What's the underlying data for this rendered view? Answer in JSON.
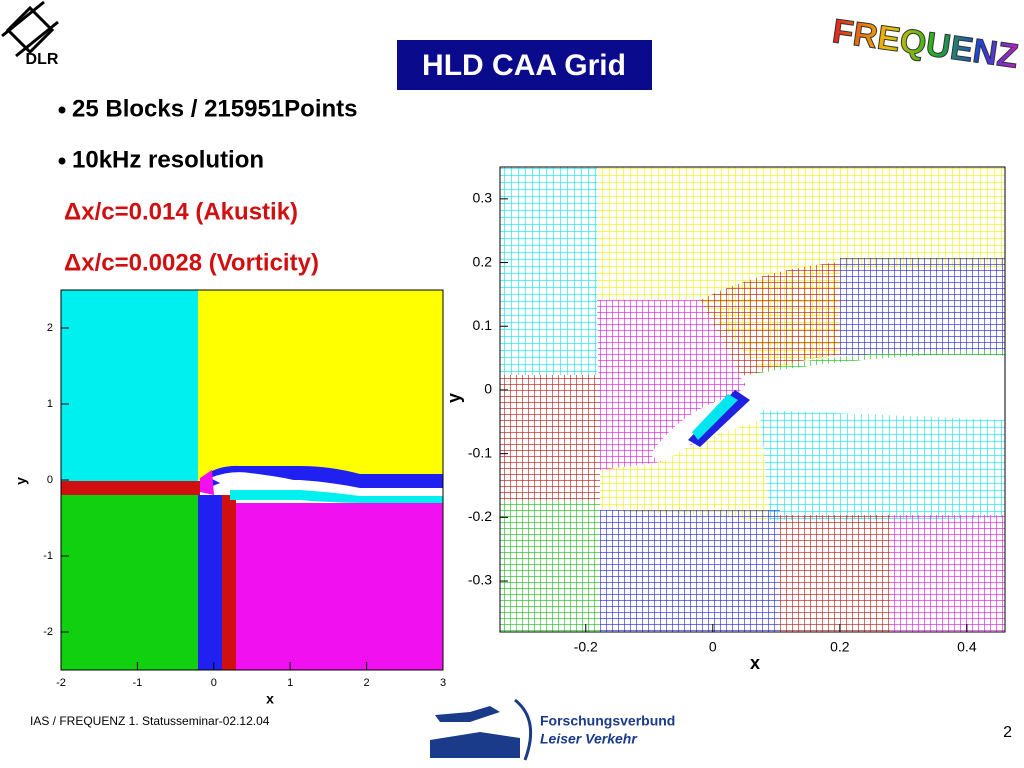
{
  "header": {
    "logo": "DLR",
    "title": "HLD CAA Grid",
    "badge": "FREQUENZ"
  },
  "bullets": [
    "25 Blocks / 215951Points",
    "10kHz resolution"
  ],
  "notes": [
    "Δx/c=0.014 (Akustik)",
    "Δx/c=0.0028 (Vorticity)"
  ],
  "plots": [
    {
      "xlabel": "x",
      "ylabel": "y",
      "xlim": [
        -2,
        3
      ],
      "ylim": [
        -2.5,
        2.5
      ],
      "xticks": [
        -2,
        -1,
        0,
        1,
        2,
        3
      ],
      "yticks": [
        -2,
        -1,
        0,
        1,
        2
      ]
    },
    {
      "xlabel": "x",
      "ylabel": "y",
      "xlim": [
        -0.335,
        0.46
      ],
      "ylim": [
        -0.38,
        0.35
      ],
      "xticks": [
        -0.2,
        0,
        0.2,
        0.4
      ],
      "yticks": [
        -0.3,
        -0.2,
        -0.1,
        0,
        0.1,
        0.2,
        0.3
      ]
    }
  ],
  "footer": {
    "text": "IAS / FREQUENZ  1. Statusseminar-02.12.04",
    "partner": [
      "Forschungsverbund",
      "Leiser Verkehr"
    ],
    "page": "2"
  }
}
